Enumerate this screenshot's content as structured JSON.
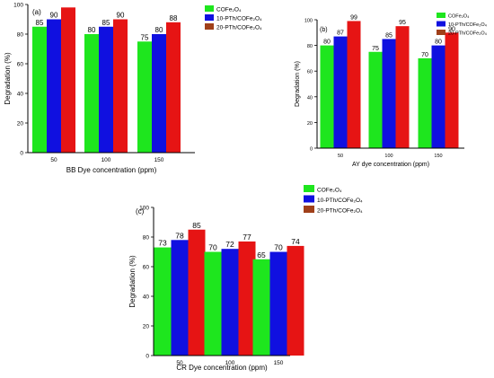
{
  "colors": {
    "cofe": "#1ee61e",
    "pth10": "#1010e0",
    "pth20": "#e61414",
    "pth20_legend": "#a0401a",
    "axis": "#000000"
  },
  "legend_labels": [
    "COFe₂O₄",
    "10-PTh/COFe₂O₄",
    "20-PTh/COFe₂O₄"
  ],
  "chart_data": [
    {
      "panel": "(a)",
      "type": "bar",
      "xlabel": "BB Dye concentration (ppm)",
      "ylabel": "Degradation (%)",
      "ylim": [
        0,
        100
      ],
      "yticks": [
        "0",
        "20",
        "40",
        "60",
        "80",
        "100"
      ],
      "categories": [
        "50",
        "100",
        "150"
      ],
      "series": [
        {
          "name": "COFe₂O₄",
          "values": [
            85,
            80,
            75
          ],
          "labels": [
            "85",
            "80",
            "75"
          ]
        },
        {
          "name": "10-PTh/COFe₂O₄",
          "values": [
            90,
            85,
            80
          ],
          "labels": [
            "90",
            "85",
            "80"
          ]
        },
        {
          "name": "20-PTh/COFe₂O₄",
          "values": [
            98,
            90,
            88
          ],
          "labels": [
            "",
            "90",
            "88"
          ]
        }
      ],
      "legend": "top-right"
    },
    {
      "panel": "(b)",
      "type": "bar",
      "xlabel": "AY dye concentration (ppm)",
      "ylabel": "Degradation (%)",
      "ylim": [
        0,
        100
      ],
      "yticks": [
        "0",
        "20",
        "40",
        "60",
        "80",
        "100"
      ],
      "categories": [
        "50",
        "100",
        "150"
      ],
      "series": [
        {
          "name": "COFe₂O₄",
          "values": [
            80,
            75,
            70
          ],
          "labels": [
            "80",
            "75",
            "70"
          ]
        },
        {
          "name": "10-PTh/COFe₂O₄",
          "values": [
            87,
            85,
            80
          ],
          "labels": [
            "87",
            "85",
            "80"
          ]
        },
        {
          "name": "20-PTh/COFe₂O₄",
          "values": [
            99,
            95,
            90
          ],
          "labels": [
            "99",
            "95",
            "90"
          ]
        }
      ],
      "legend": "top-right"
    },
    {
      "panel": "(c)",
      "type": "bar",
      "xlabel": "CR Dye concentration (ppm)",
      "ylabel": "Degradation (%)",
      "ylim": [
        0,
        100
      ],
      "yticks": [
        "0",
        "20",
        "40",
        "60",
        "80",
        "100"
      ],
      "categories": [
        "50",
        "100",
        "150"
      ],
      "series": [
        {
          "name": "COFe₂O₄",
          "values": [
            73,
            70,
            65
          ],
          "labels": [
            "73",
            "70",
            "65"
          ]
        },
        {
          "name": "10-PTh/COFe₂O₄",
          "values": [
            78,
            72,
            70
          ],
          "labels": [
            "78",
            "72",
            "70"
          ]
        },
        {
          "name": "20-PTh/COFe₂O₄",
          "values": [
            85,
            77,
            74
          ],
          "labels": [
            "85",
            "77",
            "74"
          ]
        }
      ],
      "legend": "top-left"
    }
  ]
}
